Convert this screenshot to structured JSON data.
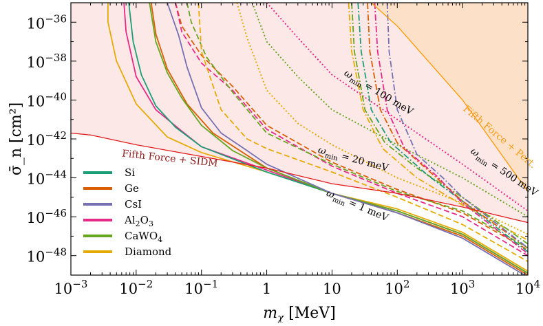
{
  "chart_data": {
    "type": "line",
    "xscale": "log",
    "yscale": "log",
    "xlim": [
      0.001,
      10000
    ],
    "ylim": [
      1e-49,
      1e-35
    ],
    "xlabel": "m_χ [MeV]",
    "ylabel": "σ̄_n [cm²]",
    "x_ticks": [
      "10^-3",
      "10^-2",
      "10^-1",
      "1",
      "10",
      "10^2",
      "10^3",
      "10^4"
    ],
    "y_ticks": [
      "10^-48",
      "10^-46",
      "10^-44",
      "10^-42",
      "10^-40",
      "10^-38",
      "10^-36"
    ],
    "legend_position": "lower-left",
    "materials": [
      {
        "name": "Si",
        "color": "#1b9e77"
      },
      {
        "name": "Ge",
        "color": "#d95f02"
      },
      {
        "name": "CsI",
        "color": "#7570b3"
      },
      {
        "name": "Al2O3",
        "color": "#e7298a"
      },
      {
        "name": "CaWO4",
        "color": "#66a61e"
      },
      {
        "name": "Diamond",
        "color": "#e6ab02"
      }
    ],
    "line_styles": [
      {
        "omega_min": "1 meV",
        "style": "solid"
      },
      {
        "omega_min": "20 meV",
        "style": "dashed"
      },
      {
        "omega_min": "100 meV",
        "style": "dotted"
      },
      {
        "omega_min": "500 meV",
        "style": "dashdot"
      }
    ],
    "bounds": [
      {
        "name": "Fifth Force + SIDM",
        "color": "#e31a1c",
        "fill": "#fde8e8",
        "points": [
          [
            0.001,
            -41.7
          ],
          [
            0.002,
            -41.8
          ],
          [
            0.01,
            -42.3
          ],
          [
            0.1,
            -42.9
          ],
          [
            1,
            -43.5
          ],
          [
            10,
            -44.3
          ],
          [
            100,
            -44.8
          ],
          [
            1000,
            -45.5
          ],
          [
            10000,
            -46.3
          ]
        ]
      },
      {
        "name": "Fifth Force + Pert.",
        "color": "#ff9900",
        "fill": "#fde0c8",
        "points": [
          [
            40,
            -35
          ],
          [
            100,
            -36.2
          ],
          [
            1000,
            -40
          ],
          [
            10000,
            -44.7
          ]
        ]
      }
    ],
    "annotations": [
      {
        "text": "ω_min = 1 meV",
        "sub": "min",
        "x": 8,
        "y": -44.9,
        "angle": 23
      },
      {
        "text": "ω_min = 20 meV",
        "x": 6,
        "y": -42.7,
        "angle": 15
      },
      {
        "text": "ω_min = 100 meV",
        "x": 15,
        "y": -38.7,
        "angle": 31
      },
      {
        "text": "ω_min = 500 meV",
        "x": 1300,
        "y": -42.7,
        "angle": 34
      },
      {
        "text": "Fifth Force + Pert.",
        "x": 1000,
        "y": -40.5,
        "angle": 40,
        "color": "#f59e1b"
      },
      {
        "text": "Fifth Force + SIDM",
        "x": 0.006,
        "y": -42.9,
        "angle": 6,
        "color": "#8b1a1a"
      }
    ],
    "series": [
      {
        "material": "Diamond",
        "omega_min": "1 meV",
        "points": [
          [
            0.0037,
            -35
          ],
          [
            0.0037,
            -36
          ],
          [
            0.005,
            -38
          ],
          [
            0.01,
            -40.2
          ],
          [
            0.03,
            -41.9
          ],
          [
            0.1,
            -42.7
          ],
          [
            1,
            -43.7
          ],
          [
            10,
            -44.8
          ],
          [
            100,
            -45.6
          ],
          [
            1000,
            -46.8
          ],
          [
            10000,
            -48.8
          ]
        ]
      },
      {
        "material": "Al2O3",
        "omega_min": "1 meV",
        "points": [
          [
            0.0065,
            -35
          ],
          [
            0.007,
            -36.5
          ],
          [
            0.01,
            -38.8
          ],
          [
            0.02,
            -40.5
          ],
          [
            0.05,
            -41.6
          ],
          [
            0.1,
            -42.4
          ],
          [
            1,
            -43.6
          ],
          [
            10,
            -44.8
          ],
          [
            100,
            -45.7
          ],
          [
            1000,
            -46.9
          ],
          [
            10000,
            -48.9
          ]
        ]
      },
      {
        "material": "Si",
        "omega_min": "1 meV",
        "points": [
          [
            0.0077,
            -35
          ],
          [
            0.009,
            -37
          ],
          [
            0.012,
            -38.7
          ],
          [
            0.02,
            -40.3
          ],
          [
            0.04,
            -41.4
          ],
          [
            0.1,
            -42.4
          ],
          [
            1,
            -43.7
          ],
          [
            10,
            -44.8
          ],
          [
            100,
            -45.7
          ],
          [
            1000,
            -46.9
          ],
          [
            10000,
            -48.9
          ]
        ]
      },
      {
        "material": "Ge",
        "omega_min": "1 meV",
        "points": [
          [
            0.017,
            -35
          ],
          [
            0.02,
            -36.6
          ],
          [
            0.03,
            -38.4
          ],
          [
            0.06,
            -40.2
          ],
          [
            0.15,
            -41.7
          ],
          [
            1,
            -43.5
          ],
          [
            10,
            -44.8
          ],
          [
            100,
            -45.8
          ],
          [
            1000,
            -47
          ],
          [
            10000,
            -49
          ]
        ]
      },
      {
        "material": "CaWO4",
        "omega_min": "1 meV",
        "points": [
          [
            0.016,
            -35
          ],
          [
            0.02,
            -37
          ],
          [
            0.03,
            -38.6
          ],
          [
            0.05,
            -39.9
          ],
          [
            0.1,
            -41.3
          ],
          [
            0.3,
            -42.6
          ],
          [
            1,
            -43.5
          ],
          [
            10,
            -44.8
          ],
          [
            100,
            -45.7
          ],
          [
            1000,
            -46.9
          ],
          [
            10000,
            -48.9
          ]
        ]
      },
      {
        "material": "CsI",
        "omega_min": "1 meV",
        "points": [
          [
            0.03,
            -35
          ],
          [
            0.045,
            -36.7
          ],
          [
            0.06,
            -38.3
          ],
          [
            0.1,
            -40.4
          ],
          [
            0.2,
            -41.7
          ],
          [
            0.5,
            -42.6
          ],
          [
            1,
            -43.3
          ],
          [
            10,
            -44.8
          ],
          [
            100,
            -45.8
          ],
          [
            1000,
            -47.1
          ],
          [
            10000,
            -49.1
          ]
        ]
      },
      {
        "material": "Ge",
        "omega_min": "20 meV",
        "points": [
          [
            0.04,
            -35
          ],
          [
            0.05,
            -36.2
          ],
          [
            0.1,
            -37.7
          ],
          [
            0.3,
            -39.3
          ],
          [
            1,
            -41.3
          ],
          [
            10,
            -43.2
          ],
          [
            100,
            -44.6
          ],
          [
            1000,
            -45.8
          ],
          [
            10000,
            -47.7
          ]
        ]
      },
      {
        "material": "Al2O3",
        "omega_min": "20 meV",
        "points": [
          [
            0.04,
            -35
          ],
          [
            0.05,
            -36.5
          ],
          [
            0.1,
            -38.1
          ],
          [
            0.3,
            -39.5
          ],
          [
            1,
            -41.5
          ],
          [
            10,
            -43.4
          ],
          [
            100,
            -44.8
          ],
          [
            1000,
            -46
          ],
          [
            10000,
            -48
          ]
        ]
      },
      {
        "material": "CaWO4",
        "omega_min": "20 meV",
        "points": [
          [
            0.06,
            -35
          ],
          [
            0.07,
            -36
          ],
          [
            0.12,
            -37.8
          ],
          [
            0.3,
            -39.6
          ],
          [
            1,
            -41.7
          ],
          [
            10,
            -43.3
          ],
          [
            100,
            -44.7
          ],
          [
            1000,
            -45.7
          ],
          [
            10000,
            -47.6
          ]
        ]
      },
      {
        "material": "Diamond",
        "omega_min": "20 meV",
        "points": [
          [
            0.09,
            -35
          ],
          [
            0.1,
            -37.5
          ],
          [
            0.2,
            -40.5
          ],
          [
            0.5,
            -42
          ],
          [
            1,
            -42.5
          ],
          [
            10,
            -43.7
          ],
          [
            100,
            -45
          ],
          [
            1000,
            -46.4
          ],
          [
            10000,
            -48.3
          ]
        ]
      },
      {
        "material": "Diamond",
        "omega_min": "100 meV",
        "points": [
          [
            0.35,
            -35
          ],
          [
            0.5,
            -36.8
          ],
          [
            1,
            -39.5
          ],
          [
            3,
            -41.2
          ],
          [
            10,
            -42.3
          ],
          [
            100,
            -44
          ],
          [
            1000,
            -45.3
          ],
          [
            10000,
            -46.9
          ]
        ]
      },
      {
        "material": "CaWO4",
        "omega_min": "100 meV",
        "points": [
          [
            0.6,
            -35
          ],
          [
            1,
            -37
          ],
          [
            3,
            -38.8
          ],
          [
            10,
            -40.5
          ],
          [
            100,
            -42.3
          ],
          [
            1000,
            -44
          ],
          [
            10000,
            -46
          ]
        ]
      },
      {
        "material": "Al2O3",
        "omega_min": "100 meV",
        "points": [
          [
            1,
            -35
          ],
          [
            3,
            -36.8
          ],
          [
            10,
            -38.7
          ],
          [
            100,
            -41
          ],
          [
            1000,
            -43.3
          ],
          [
            10000,
            -45.7
          ]
        ]
      },
      {
        "material": "Diamond",
        "omega_min": "500 meV",
        "points": [
          [
            18,
            -35
          ],
          [
            20,
            -37.5
          ],
          [
            30,
            -40.5
          ],
          [
            60,
            -42.5
          ],
          [
            200,
            -44
          ],
          [
            1000,
            -45.4
          ],
          [
            10000,
            -47.2
          ]
        ]
      },
      {
        "material": "CaWO4",
        "omega_min": "500 meV",
        "points": [
          [
            20,
            -35
          ],
          [
            22,
            -37.5
          ],
          [
            32,
            -40.5
          ],
          [
            65,
            -42.2
          ],
          [
            200,
            -43.5
          ],
          [
            1000,
            -45
          ],
          [
            10000,
            -47.4
          ]
        ]
      },
      {
        "material": "Si",
        "omega_min": "500 meV",
        "points": [
          [
            25,
            -35
          ],
          [
            28,
            -37.5
          ],
          [
            40,
            -40.5
          ],
          [
            80,
            -42.2
          ],
          [
            300,
            -43.9
          ],
          [
            1000,
            -45.2
          ],
          [
            10000,
            -47.8
          ]
        ]
      },
      {
        "material": "Ge",
        "omega_min": "500 meV",
        "points": [
          [
            35,
            -35
          ],
          [
            38,
            -37.5
          ],
          [
            55,
            -40.5
          ],
          [
            100,
            -42.2
          ],
          [
            400,
            -44
          ],
          [
            1000,
            -45.2
          ],
          [
            10000,
            -47.6
          ]
        ]
      },
      {
        "material": "Al2O3",
        "omega_min": "500 meV",
        "points": [
          [
            45,
            -35
          ],
          [
            50,
            -37.5
          ],
          [
            70,
            -40.5
          ],
          [
            130,
            -42.5
          ],
          [
            400,
            -43.9
          ],
          [
            1000,
            -45.3
          ],
          [
            10000,
            -47.9
          ]
        ]
      },
      {
        "material": "CsI",
        "omega_min": "500 meV",
        "points": [
          [
            70,
            -35
          ],
          [
            75,
            -37.5
          ],
          [
            100,
            -40.5
          ],
          [
            200,
            -42.8
          ],
          [
            500,
            -44
          ],
          [
            1000,
            -45
          ],
          [
            10000,
            -47.6
          ]
        ]
      }
    ]
  }
}
